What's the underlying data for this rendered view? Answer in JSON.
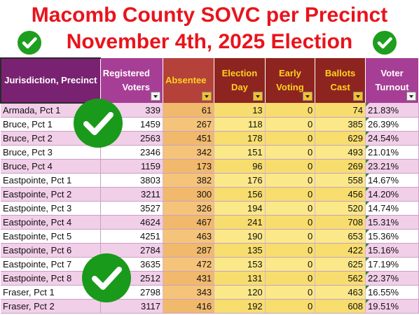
{
  "title_line1": "Macomb County SOVC per Precinct",
  "title_line2": "November 4th, 2025 Election",
  "columns": {
    "jurisdiction": "Jurisdiction, Precinct",
    "registered": "Registered Voters",
    "absentee": "Absentee",
    "election_day": "Election Day",
    "early_voting": "Early Voting",
    "ballots_cast": "Ballots Cast",
    "turnout": "Voter Turnout"
  },
  "rows": [
    {
      "name": "Armada, Pct 1",
      "registered": "339",
      "absentee": "61",
      "election_day": "13",
      "early": "0",
      "ballots": "74",
      "turnout": "21.83%"
    },
    {
      "name": "Bruce, Pct 1",
      "registered": "1459",
      "absentee": "267",
      "election_day": "118",
      "early": "0",
      "ballots": "385",
      "turnout": "26.39%"
    },
    {
      "name": "Bruce, Pct 2",
      "registered": "2563",
      "absentee": "451",
      "election_day": "178",
      "early": "0",
      "ballots": "629",
      "turnout": "24.54%"
    },
    {
      "name": "Bruce, Pct 3",
      "registered": "2346",
      "absentee": "342",
      "election_day": "151",
      "early": "0",
      "ballots": "493",
      "turnout": "21.01%"
    },
    {
      "name": "Bruce, Pct 4",
      "registered": "1159",
      "absentee": "173",
      "election_day": "96",
      "early": "0",
      "ballots": "269",
      "turnout": "23.21%"
    },
    {
      "name": "Eastpointe, Pct 1",
      "registered": "3803",
      "absentee": "382",
      "election_day": "176",
      "early": "0",
      "ballots": "558",
      "turnout": "14.67%"
    },
    {
      "name": "Eastpointe, Pct 2",
      "registered": "3211",
      "absentee": "300",
      "election_day": "156",
      "early": "0",
      "ballots": "456",
      "turnout": "14.20%"
    },
    {
      "name": "Eastpointe, Pct 3",
      "registered": "3527",
      "absentee": "326",
      "election_day": "194",
      "early": "0",
      "ballots": "520",
      "turnout": "14.74%"
    },
    {
      "name": "Eastpointe, Pct 4",
      "registered": "4624",
      "absentee": "467",
      "election_day": "241",
      "early": "0",
      "ballots": "708",
      "turnout": "15.31%"
    },
    {
      "name": "Eastpointe, Pct 5",
      "registered": "4251",
      "absentee": "463",
      "election_day": "190",
      "early": "0",
      "ballots": "653",
      "turnout": "15.36%"
    },
    {
      "name": "Eastpointe, Pct 6",
      "registered": "2784",
      "absentee": "287",
      "election_day": "135",
      "early": "0",
      "ballots": "422",
      "turnout": "15.16%"
    },
    {
      "name": "Eastpointe, Pct 7",
      "registered": "3635",
      "absentee": "472",
      "election_day": "153",
      "early": "0",
      "ballots": "625",
      "turnout": "17.19%"
    },
    {
      "name": "Eastpointe, Pct 8",
      "registered": "2512",
      "absentee": "431",
      "election_day": "131",
      "early": "0",
      "ballots": "562",
      "turnout": "22.37%"
    },
    {
      "name": "Fraser, Pct 1",
      "registered": "2798",
      "absentee": "343",
      "election_day": "120",
      "early": "0",
      "ballots": "463",
      "turnout": "16.55%"
    },
    {
      "name": "Fraser, Pct 2",
      "registered": "3117",
      "absentee": "416",
      "election_day": "192",
      "early": "0",
      "ballots": "608",
      "turnout": "19.51%"
    }
  ],
  "colors": {
    "title_red": "#e8141c",
    "check_green": "#1a9a1a",
    "header_purple": "#7a2272",
    "header_maroon": "#8e2420",
    "header_gold_text": "#ffd21e",
    "row_pink": "#f2cfe9",
    "cell_orange": "#f0b96c",
    "cell_yellow": "#f7dd6e"
  },
  "icons": [
    "check-circle-icon",
    "filter-dropdown-icon"
  ]
}
